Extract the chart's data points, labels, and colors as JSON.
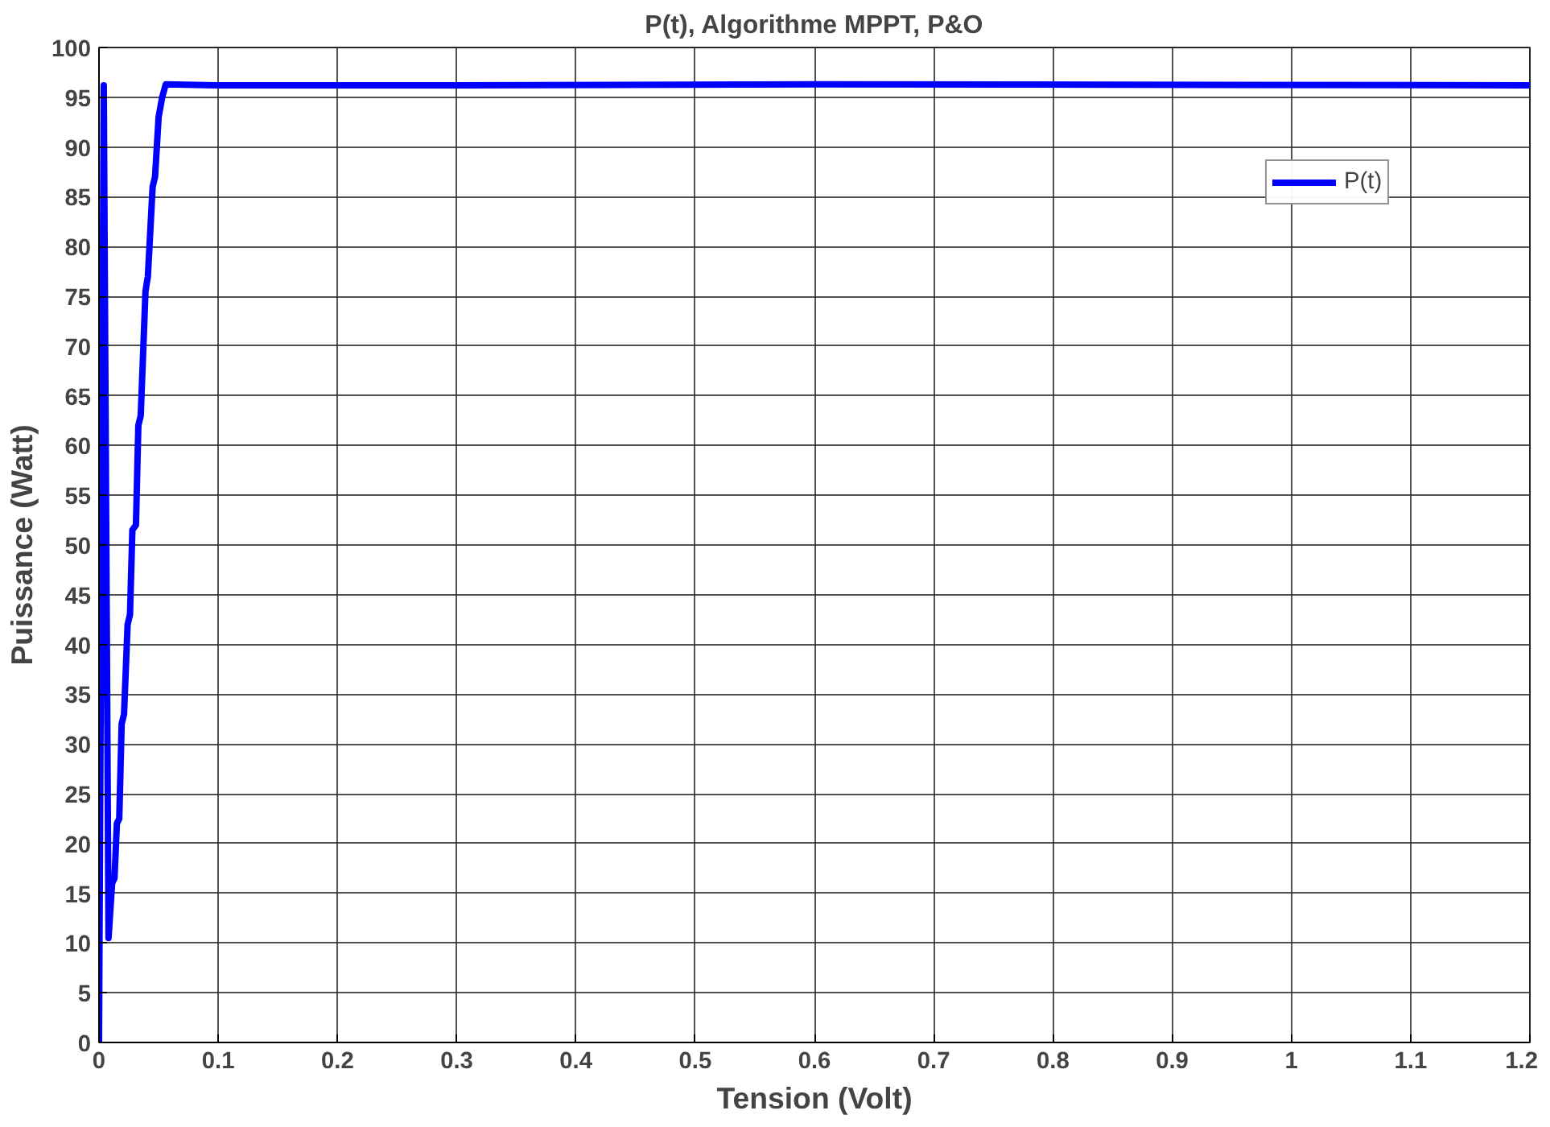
{
  "chart_data": {
    "type": "line",
    "title": "P(t), Algorithme MPPT, P&O",
    "xlabel": "Tension (Volt)",
    "ylabel": "Puissance (Watt)",
    "series": [
      {
        "name": "P(t)",
        "color": "#0000ff",
        "x": [
          0,
          0.004,
          0.008,
          0.011,
          0.013,
          0.015,
          0.017,
          0.019,
          0.021,
          0.024,
          0.026,
          0.028,
          0.031,
          0.033,
          0.035,
          0.039,
          0.041,
          0.045,
          0.047,
          0.05,
          0.053,
          0.056,
          0.1,
          0.3,
          0.6,
          1.2
        ],
        "values": [
          0,
          96.2,
          10.5,
          16,
          16.5,
          22,
          22.5,
          32,
          33,
          42,
          43,
          51.5,
          52,
          62,
          63,
          75.5,
          77,
          86,
          87,
          93,
          95,
          96.3,
          96.2,
          96.2,
          96.3,
          96.2
        ]
      }
    ],
    "xlim": [
      0,
      1.2
    ],
    "xticks": [
      0,
      0.1,
      0.2,
      0.3,
      0.4,
      0.5,
      0.6,
      0.7,
      0.8,
      0.9,
      1,
      1.1,
      1.2
    ],
    "ylim": [
      0,
      100
    ],
    "yticks": [
      0,
      5,
      10,
      15,
      20,
      25,
      30,
      35,
      40,
      45,
      50,
      55,
      60,
      65,
      70,
      75,
      80,
      85,
      90,
      95,
      100
    ],
    "grid": true,
    "legend": "top right",
    "marker": "none",
    "line_style": "solid"
  }
}
